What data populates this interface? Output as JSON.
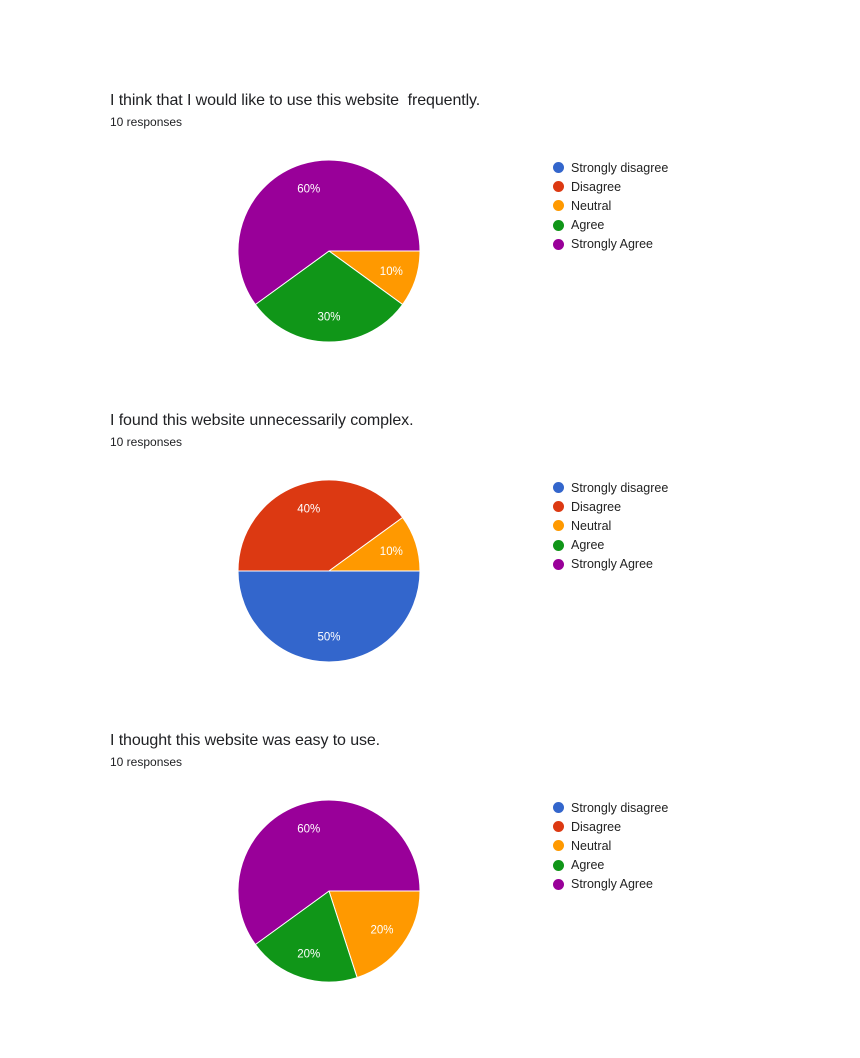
{
  "legend": [
    {
      "label": "Strongly disagree",
      "color": "#3366cc"
    },
    {
      "label": "Disagree",
      "color": "#dc3912"
    },
    {
      "label": "Neutral",
      "color": "#ff9900"
    },
    {
      "label": "Agree",
      "color": "#109618"
    },
    {
      "label": "Strongly Agree",
      "color": "#990099"
    }
  ],
  "questions": [
    {
      "title": "I think that I would like to use this website  frequently.",
      "responses": "10 responses"
    },
    {
      "title": "I found this website unnecessarily complex.",
      "responses": "10 responses"
    },
    {
      "title": "I thought this website was easy to use.",
      "responses": "10 responses"
    }
  ],
  "chart_data": [
    {
      "type": "pie",
      "title": "I think that I would like to use this website  frequently.",
      "subtitle": "10 responses",
      "categories": [
        "Strongly disagree",
        "Disagree",
        "Neutral",
        "Agree",
        "Strongly Agree"
      ],
      "values": [
        0,
        0,
        10,
        30,
        60
      ],
      "unit": "%",
      "legend_position": "right"
    },
    {
      "type": "pie",
      "title": "I found this website unnecessarily complex.",
      "subtitle": "10 responses",
      "categories": [
        "Strongly disagree",
        "Disagree",
        "Neutral",
        "Agree",
        "Strongly Agree"
      ],
      "values": [
        50,
        40,
        10,
        0,
        0
      ],
      "unit": "%",
      "legend_position": "right"
    },
    {
      "type": "pie",
      "title": "I thought this website was easy to use.",
      "subtitle": "10 responses",
      "categories": [
        "Strongly disagree",
        "Disagree",
        "Neutral",
        "Agree",
        "Strongly Agree"
      ],
      "values": [
        0,
        0,
        20,
        20,
        60
      ],
      "unit": "%",
      "legend_position": "right"
    }
  ]
}
